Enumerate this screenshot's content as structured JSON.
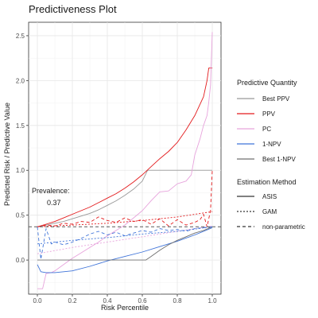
{
  "chart_data": {
    "type": "line",
    "title": "Predictiveness Plot",
    "xlabel": "Risk Percentile",
    "ylabel": "Predicted Risk / Predictive Value",
    "xlim": [
      -0.05,
      1.05
    ],
    "ylim": [
      -0.38,
      2.65
    ],
    "x_ticks": [
      0.0,
      0.2,
      0.4,
      0.6,
      0.8,
      1.0
    ],
    "x_tick_labels": [
      "0.0",
      "0.2",
      "0.4",
      "0.6",
      "0.8",
      "1.0"
    ],
    "y_ticks": [
      0.0,
      0.5,
      1.0,
      1.5,
      2.0,
      2.5
    ],
    "y_tick_labels": [
      "0.0",
      "0.5",
      "1.0",
      "1.5",
      "2.0",
      "2.5"
    ],
    "grid": true,
    "prevalence": {
      "value": 0.37,
      "label": "Prevalence:",
      "value_label": "0.37"
    },
    "legend": {
      "placement": "right",
      "quantity_title": "Predictive Quantity",
      "quantity_items": [
        {
          "label": "Best PPV",
          "color": "#999999"
        },
        {
          "label": "PPV",
          "color": "#e31a1c"
        },
        {
          "label": "PC",
          "color": "#e7a3dc"
        },
        {
          "label": "1-NPV",
          "color": "#3f74d9"
        },
        {
          "label": "Best 1-NPV",
          "color": "#6f6f6f"
        }
      ],
      "method_title": "Estimation Method",
      "method_items": [
        {
          "label": "ASIS",
          "dash": "solid"
        },
        {
          "label": "GAM",
          "dash": "dotted"
        },
        {
          "label": "non-parametric",
          "dash": "dashed"
        }
      ]
    },
    "series": [
      {
        "quantity": "Best PPV",
        "method": "ASIS",
        "color": "#999999",
        "dash": "solid",
        "x": [
          0.0,
          0.05,
          0.1,
          0.15,
          0.2,
          0.25,
          0.3,
          0.35,
          0.4,
          0.45,
          0.5,
          0.55,
          0.6,
          0.63,
          1.0
        ],
        "y": [
          0.37,
          0.39,
          0.41,
          0.43,
          0.46,
          0.49,
          0.52,
          0.56,
          0.61,
          0.66,
          0.72,
          0.79,
          0.88,
          1.0,
          1.0
        ]
      },
      {
        "quantity": "PPV",
        "method": "ASIS",
        "color": "#e31a1c",
        "dash": "solid",
        "x": [
          0.0,
          0.05,
          0.1,
          0.15,
          0.2,
          0.25,
          0.3,
          0.35,
          0.4,
          0.45,
          0.5,
          0.55,
          0.6,
          0.65,
          0.7,
          0.75,
          0.8,
          0.85,
          0.9,
          0.95,
          0.97,
          0.98,
          1.0
        ],
        "y": [
          0.37,
          0.4,
          0.43,
          0.47,
          0.51,
          0.55,
          0.59,
          0.64,
          0.69,
          0.74,
          0.8,
          0.87,
          0.95,
          1.04,
          1.13,
          1.21,
          1.31,
          1.45,
          1.61,
          1.82,
          2.0,
          2.14,
          2.14
        ]
      },
      {
        "quantity": "PC",
        "method": "ASIS",
        "color": "#e7a3dc",
        "dash": "solid",
        "x": [
          0.0,
          0.03,
          0.05,
          0.08,
          0.1,
          0.15,
          0.2,
          0.25,
          0.3,
          0.35,
          0.4,
          0.45,
          0.5,
          0.55,
          0.6,
          0.65,
          0.7,
          0.75,
          0.8,
          0.85,
          0.88,
          0.9,
          0.93,
          0.95,
          0.97,
          0.98,
          0.99,
          1.0
        ],
        "y": [
          -0.32,
          -0.32,
          -0.15,
          -0.14,
          -0.12,
          -0.05,
          0.02,
          0.08,
          0.14,
          0.2,
          0.27,
          0.33,
          0.39,
          0.47,
          0.55,
          0.66,
          0.76,
          0.77,
          0.85,
          0.88,
          0.95,
          1.17,
          1.35,
          1.5,
          1.61,
          1.76,
          1.95,
          2.54
        ]
      },
      {
        "quantity": "1-NPV",
        "method": "ASIS",
        "color": "#3f74d9",
        "dash": "solid",
        "x": [
          0.0,
          0.02,
          0.05,
          0.1,
          0.15,
          0.2,
          0.3,
          0.4,
          0.5,
          0.6,
          0.7,
          0.8,
          0.9,
          1.0
        ],
        "y": [
          -0.05,
          -0.13,
          -0.14,
          -0.14,
          -0.13,
          -0.12,
          -0.07,
          -0.01,
          0.04,
          0.09,
          0.15,
          0.21,
          0.28,
          0.36
        ]
      },
      {
        "quantity": "Best 1-NPV",
        "method": "ASIS",
        "color": "#6f6f6f",
        "dash": "solid",
        "x": [
          0.0,
          0.62,
          0.65,
          0.7,
          0.75,
          0.8,
          0.85,
          0.9,
          0.95,
          1.0
        ],
        "y": [
          0.0,
          0.0,
          0.04,
          0.11,
          0.17,
          0.22,
          0.26,
          0.3,
          0.33,
          0.37
        ]
      },
      {
        "quantity": "PPV",
        "method": "GAM",
        "color": "#e31a1c",
        "dash": "dotted",
        "x": [
          0.0,
          0.2,
          0.4,
          0.6,
          0.8,
          1.0
        ],
        "y": [
          0.37,
          0.39,
          0.41,
          0.44,
          0.48,
          0.54
        ]
      },
      {
        "quantity": "PC",
        "method": "GAM",
        "color": "#e7a3dc",
        "dash": "dotted",
        "x": [
          0.0,
          0.2,
          0.4,
          0.6,
          0.8,
          1.0
        ],
        "y": [
          0.07,
          0.14,
          0.2,
          0.26,
          0.32,
          0.38
        ]
      },
      {
        "quantity": "1-NPV",
        "method": "GAM",
        "color": "#3f74d9",
        "dash": "dotted",
        "x": [
          0.0,
          0.2,
          0.4,
          0.6,
          0.8,
          1.0
        ],
        "y": [
          0.18,
          0.22,
          0.25,
          0.29,
          0.32,
          0.37
        ]
      },
      {
        "quantity": "PPV",
        "method": "non-parametric",
        "color": "#e31a1c",
        "dash": "dashed",
        "x": [
          0.0,
          0.05,
          0.1,
          0.15,
          0.2,
          0.25,
          0.3,
          0.35,
          0.4,
          0.45,
          0.5,
          0.55,
          0.6,
          0.65,
          0.7,
          0.75,
          0.8,
          0.85,
          0.9,
          0.93,
          0.95,
          0.97,
          0.99,
          1.0
        ],
        "y": [
          0.37,
          0.39,
          0.38,
          0.41,
          0.4,
          0.43,
          0.42,
          0.48,
          0.44,
          0.42,
          0.47,
          0.43,
          0.45,
          0.4,
          0.46,
          0.38,
          0.45,
          0.39,
          0.42,
          0.45,
          0.51,
          0.37,
          0.55,
          1.0
        ]
      },
      {
        "quantity": "1-NPV",
        "method": "non-parametric",
        "color": "#3f74d9",
        "dash": "dashed",
        "x": [
          0.0,
          0.02,
          0.05,
          0.08,
          0.1,
          0.15,
          0.2,
          0.25,
          0.3,
          0.35,
          0.4,
          0.45,
          0.5,
          0.55,
          0.6,
          0.65,
          0.7,
          0.75,
          0.8,
          0.85,
          0.9,
          0.95,
          1.0
        ],
        "y": [
          0.37,
          0.01,
          0.35,
          0.18,
          0.2,
          0.17,
          0.2,
          0.24,
          0.29,
          0.32,
          0.28,
          0.31,
          0.27,
          0.3,
          0.33,
          0.31,
          0.35,
          0.33,
          0.34,
          0.32,
          0.35,
          0.36,
          0.37
        ]
      },
      {
        "quantity": "Prevalence",
        "method": "reference",
        "color": "#5a5a5a",
        "dash": "dashed",
        "x": [
          -0.05,
          1.05
        ],
        "y": [
          0.37,
          0.37
        ]
      }
    ]
  }
}
